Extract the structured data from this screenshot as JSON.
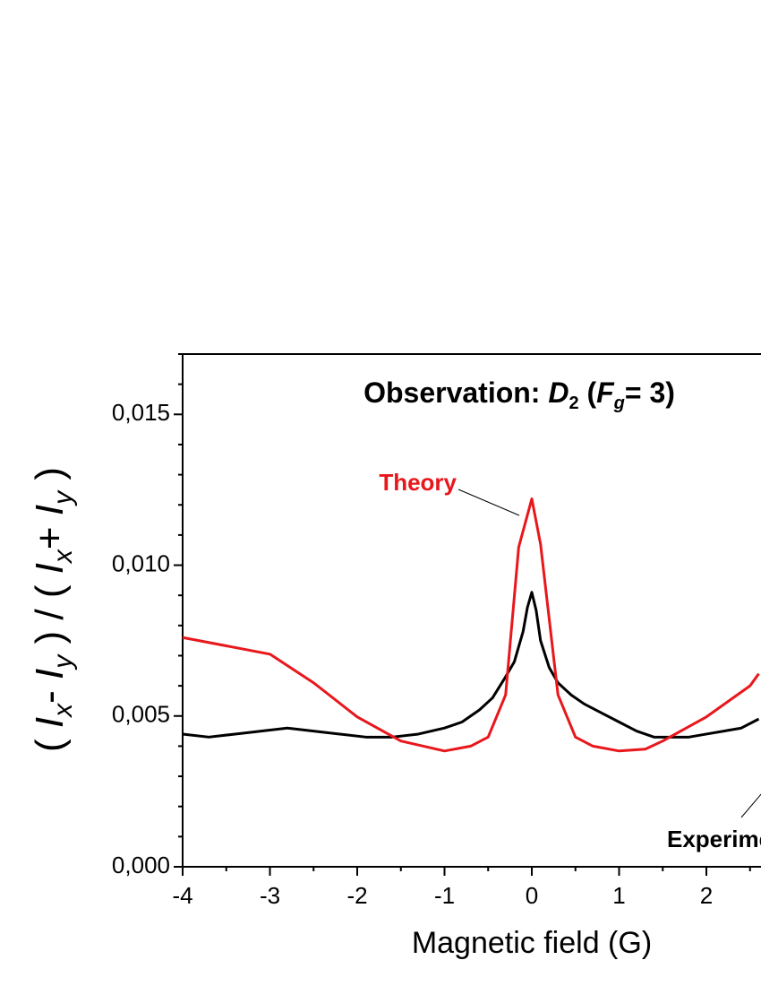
{
  "chart_data": {
    "type": "line",
    "title_parts": [
      "Observation: ",
      "D",
      "2",
      " (",
      "F",
      "g",
      "= 3)"
    ],
    "x_label": "Magnetic field (G)",
    "y_label_parts": [
      "( ",
      "I",
      "x",
      "- ",
      "I",
      "y",
      " ) / ( ",
      "I",
      "x",
      "+ ",
      "I",
      "y",
      " )"
    ],
    "xlim": [
      -4,
      4
    ],
    "ylim": [
      0,
      0.017
    ],
    "xticks": [
      -4,
      -3,
      -2,
      -1,
      0,
      1,
      2
    ],
    "yticks": [
      {
        "value": 0,
        "label": "0,000"
      },
      {
        "value": 0.005,
        "label": "0,005"
      },
      {
        "value": 0.01,
        "label": "0,010"
      },
      {
        "value": 0.015,
        "label": "0,015"
      }
    ],
    "series": [
      {
        "name": "Experiment",
        "color": "#000000",
        "x": [
          -4,
          -3.7,
          -3.4,
          -3.1,
          -2.8,
          -2.5,
          -2.2,
          -1.9,
          -1.6,
          -1.3,
          -1.0,
          -0.8,
          -0.6,
          -0.45,
          -0.3,
          -0.2,
          -0.1,
          -0.05,
          0,
          0.05,
          0.1,
          0.2,
          0.3,
          0.45,
          0.6,
          0.8,
          1.0,
          1.2,
          1.4,
          1.6,
          1.8,
          2.0,
          2.2,
          2.4,
          2.6
        ],
        "values": [
          0.0044,
          0.0043,
          0.0044,
          0.0045,
          0.0046,
          0.0045,
          0.0044,
          0.0043,
          0.0043,
          0.0044,
          0.0046,
          0.0048,
          0.0052,
          0.0056,
          0.0063,
          0.0068,
          0.0078,
          0.0086,
          0.0091,
          0.0085,
          0.0075,
          0.0066,
          0.0061,
          0.0057,
          0.0054,
          0.0051,
          0.0048,
          0.0045,
          0.0043,
          0.0043,
          0.0043,
          0.0044,
          0.0045,
          0.0046,
          0.0049
        ]
      },
      {
        "name": "Theory",
        "color": "#e8171c",
        "x": [
          -4,
          -3,
          -2.5,
          -2,
          -1.5,
          -1,
          -0.7,
          -0.5,
          -0.3,
          -0.15,
          0,
          0.1,
          0.3,
          0.5,
          0.7,
          1,
          1.3,
          1.5,
          2,
          2.5,
          2.6
        ],
        "values": [
          0.0076,
          0.00705,
          0.0061,
          0.00497,
          0.00417,
          0.00384,
          0.004,
          0.0043,
          0.0057,
          0.0106,
          0.0122,
          0.0107,
          0.0057,
          0.0043,
          0.004,
          0.00384,
          0.0039,
          0.00417,
          0.00497,
          0.006,
          0.0064
        ]
      }
    ]
  }
}
